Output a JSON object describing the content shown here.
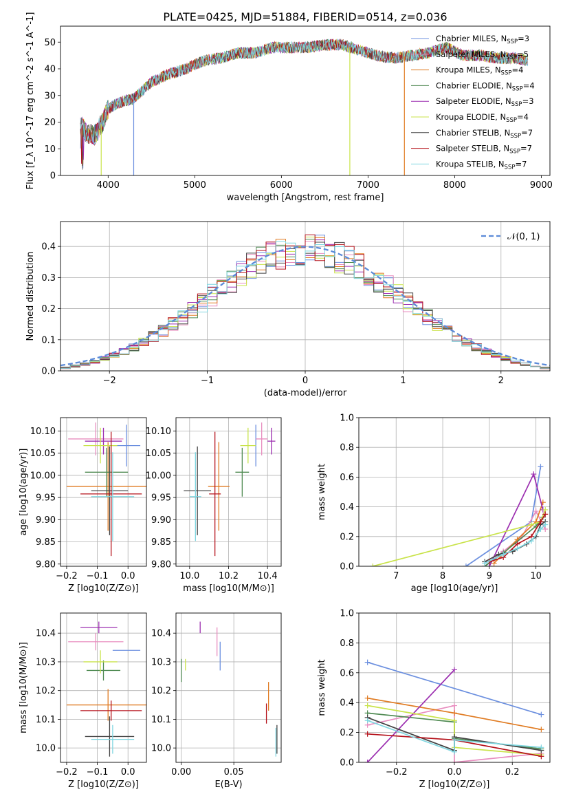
{
  "figure_title": "PLATE=0425, MJD=51884, FIBERID=0514, z=0.036",
  "series_legend": [
    {
      "name": "Chabrier MILES, N_SSP=3",
      "label": "Chabrier MILES, N",
      "sub": "SSP",
      "tail": "=3",
      "color": "#6b8fdf"
    },
    {
      "name": "Salpeter MILES, N_SSP=5",
      "label": "Salpeter MILES, N",
      "sub": "SSP",
      "tail": "=5",
      "color": "#e88dbf"
    },
    {
      "name": "Kroupa MILES, N_SSP=4",
      "label": "Kroupa MILES, N",
      "sub": "SSP",
      "tail": "=4",
      "color": "#e07b22"
    },
    {
      "name": "Chabrier ELODIE, N_SSP=4",
      "label": "Chabrier ELODIE, N",
      "sub": "SSP",
      "tail": "=4",
      "color": "#4f8a52"
    },
    {
      "name": "Salpeter ELODIE, N_SSP=3",
      "label": "Salpeter ELODIE, N",
      "sub": "SSP",
      "tail": "=3",
      "color": "#9c2fb0"
    },
    {
      "name": "Kroupa ELODIE, N_SSP=4",
      "label": "Kroupa ELODIE, N",
      "sub": "SSP",
      "tail": "=4",
      "color": "#c9e34a"
    },
    {
      "name": "Chabrier STELIB, N_SSP=7",
      "label": "Chabrier STELIB, N",
      "sub": "SSP",
      "tail": "=7",
      "color": "#444444"
    },
    {
      "name": "Salpeter STELIB, N_SSP=7",
      "label": "Salpeter STELIB, N",
      "sub": "SSP",
      "tail": "=7",
      "color": "#b5121b"
    },
    {
      "name": "Kroupa STELIB, N_SSP=7",
      "label": "Kroupa STELIB, N",
      "sub": "SSP",
      "tail": "=7",
      "color": "#7fd6e0"
    }
  ],
  "chart_data": [
    {
      "id": "spectrum",
      "type": "line",
      "title": "PLATE=0425, MJD=51884, FIBERID=0514, z=0.036",
      "xlabel": "wavelength [Angstrom, rest frame]",
      "ylabel": "Flux [f_λ 10^-17 erg cm^-2 s^-1 A^-1]",
      "xlim": [
        3450,
        9100
      ],
      "ylim": [
        0,
        56
      ],
      "xticks": [
        4000,
        5000,
        6000,
        7000,
        8000,
        9000
      ],
      "yticks": [
        0,
        10,
        20,
        30,
        40,
        50
      ],
      "legend": "upper right",
      "continuum": {
        "x": [
          3680,
          3750,
          3850,
          3950,
          4000,
          4100,
          4300,
          4500,
          4700,
          4900,
          5100,
          5300,
          5500,
          5700,
          5900,
          6100,
          6300,
          6500,
          6700,
          6900,
          7100,
          7300,
          7500,
          7700,
          7900,
          8100,
          8300,
          8500,
          8700,
          8850
        ],
        "y": [
          19,
          16,
          15,
          21,
          25,
          27,
          29,
          35,
          38,
          40,
          43,
          44,
          46,
          46,
          48,
          48,
          48,
          49,
          49,
          47,
          45,
          44,
          45,
          46,
          48,
          45,
          45,
          44,
          44,
          43
        ]
      },
      "drops": [
        {
          "series": "Chabrier MILES, N_SSP=3",
          "x": 4295,
          "to": 0
        },
        {
          "series": "Kroupa ELODIE, N_SSP=4",
          "x": 3920,
          "to": 0
        },
        {
          "series": "Kroupa ELODIE, N_SSP=4",
          "x": 6790,
          "to": 0
        },
        {
          "series": "Kroupa MILES, N_SSP=4",
          "x": 7420,
          "to": 0
        }
      ]
    },
    {
      "id": "residuals",
      "type": "line",
      "xlabel": "(data-model)/error",
      "ylabel": "Normed distribution",
      "xlim": [
        -2.5,
        2.5
      ],
      "ylim": [
        0,
        0.48
      ],
      "xticks": [
        -2,
        -1,
        0,
        1,
        2
      ],
      "yticks": [
        0.0,
        0.1,
        0.2,
        0.3,
        0.4
      ],
      "legend": "upper right",
      "series": [
        {
          "name": "N(0,1)",
          "label": "𝒩(0, 1)",
          "color": "#5b8ad8"
        }
      ]
    },
    {
      "id": "age_vs_Z",
      "type": "scatter",
      "xlabel": "Z [log10(Z/Z⊙)]",
      "ylabel": "age  [log10(age/yr)]",
      "xlim": [
        -0.22,
        0.06
      ],
      "ylim": [
        9.795,
        10.13
      ],
      "xticks": [
        -0.2,
        -0.1,
        0.0
      ],
      "yticks": [
        9.8,
        9.85,
        9.9,
        9.95,
        10.0,
        10.05,
        10.1
      ],
      "points": [
        {
          "series": "Chabrier MILES, N_SSP=3",
          "x": -0.005,
          "y": 10.067,
          "xerr": 0.045,
          "yerr": 0.047
        },
        {
          "series": "Salpeter MILES, N_SSP=5",
          "x": -0.105,
          "y": 10.082,
          "xerr": 0.09,
          "yerr": 0.037
        },
        {
          "series": "Kroupa MILES, N_SSP=4",
          "x": -0.065,
          "y": 9.975,
          "xerr": 0.135,
          "yerr": 0.1
        },
        {
          "series": "Chabrier ELODIE, N_SSP=4",
          "x": -0.07,
          "y": 10.007,
          "xerr": 0.07,
          "yerr": 0.055
        },
        {
          "series": "Salpeter ELODIE, N_SSP=3",
          "x": -0.08,
          "y": 10.077,
          "xerr": 0.06,
          "yerr": 0.03
        },
        {
          "series": "Kroupa ELODIE, N_SSP=4",
          "x": -0.09,
          "y": 10.067,
          "xerr": 0.055,
          "yerr": 0.04
        },
        {
          "series": "Chabrier STELIB, N_SSP=7",
          "x": -0.06,
          "y": 9.965,
          "xerr": 0.06,
          "yerr": 0.1
        },
        {
          "series": "Salpeter STELIB, N_SSP=7",
          "x": -0.055,
          "y": 9.958,
          "xerr": 0.1,
          "yerr": 0.14
        },
        {
          "series": "Kroupa STELIB, N_SSP=7",
          "x": -0.05,
          "y": 9.952,
          "xerr": 0.07,
          "yerr": 0.1
        }
      ]
    },
    {
      "id": "age_vs_mass",
      "type": "scatter",
      "xlabel": "mass [log10(M/M⊙)]",
      "ylim": [
        9.795,
        10.13
      ],
      "xlim": [
        9.93,
        10.47
      ],
      "xticks": [
        10.0,
        10.2,
        10.4
      ],
      "yticks": [
        9.8,
        9.85,
        9.9,
        9.95,
        10.0,
        10.05,
        10.1
      ],
      "points": [
        {
          "series": "Chabrier MILES, N_SSP=3",
          "x": 10.34,
          "y": 10.067,
          "xerr": 0.0,
          "yerr": 0.047
        },
        {
          "series": "Salpeter MILES, N_SSP=5",
          "x": 10.37,
          "y": 10.082,
          "xerr": 0.03,
          "yerr": 0.037
        },
        {
          "series": "Kroupa MILES, N_SSP=4",
          "x": 10.15,
          "y": 9.975,
          "xerr": 0.055,
          "yerr": 0.1
        },
        {
          "series": "Chabrier ELODIE, N_SSP=4",
          "x": 10.27,
          "y": 10.007,
          "xerr": 0.035,
          "yerr": 0.055
        },
        {
          "series": "Salpeter ELODIE, N_SSP=3",
          "x": 10.42,
          "y": 10.077,
          "xerr": 0.02,
          "yerr": 0.03
        },
        {
          "series": "Kroupa ELODIE, N_SSP=4",
          "x": 10.3,
          "y": 10.067,
          "xerr": 0.04,
          "yerr": 0.04
        },
        {
          "series": "Chabrier STELIB, N_SSP=7",
          "x": 10.04,
          "y": 9.965,
          "xerr": 0.07,
          "yerr": 0.1
        },
        {
          "series": "Salpeter STELIB, N_SSP=7",
          "x": 10.13,
          "y": 9.958,
          "xerr": 0.03,
          "yerr": 0.14
        },
        {
          "series": "Kroupa STELIB, N_SSP=7",
          "x": 10.03,
          "y": 9.952,
          "xerr": 0.03,
          "yerr": 0.1
        }
      ]
    },
    {
      "id": "mass_weight_vs_age",
      "type": "line",
      "xlabel": "age  [log10(age/yr)]",
      "ylabel": "mass weight",
      "xlim": [
        6.2,
        10.3
      ],
      "ylim": [
        0,
        1.0
      ],
      "xticks": [
        7,
        8,
        9,
        10
      ],
      "yticks": [
        0.0,
        0.2,
        0.4,
        0.6,
        0.8,
        1.0
      ],
      "series": [
        {
          "name": "Chabrier MILES, N_SSP=3",
          "x": [
            8.5,
            9.9,
            10.1
          ],
          "y": [
            0.0,
            0.3,
            0.67
          ]
        },
        {
          "name": "Salpeter MILES, N_SSP=5",
          "x": [
            8.9,
            9.3,
            9.7,
            10.0,
            10.2
          ],
          "y": [
            0.0,
            0.1,
            0.2,
            0.37,
            0.25
          ]
        },
        {
          "name": "Kroupa MILES, N_SSP=4",
          "x": [
            9.1,
            9.6,
            10.0,
            10.15
          ],
          "y": [
            0.02,
            0.18,
            0.3,
            0.43
          ]
        },
        {
          "name": "Chabrier ELODIE, N_SSP=4",
          "x": [
            8.9,
            9.3,
            10.0,
            10.15
          ],
          "y": [
            0.0,
            0.09,
            0.27,
            0.33
          ]
        },
        {
          "name": "Salpeter ELODIE, N_SSP=3",
          "x": [
            9.0,
            9.95,
            10.15
          ],
          "y": [
            0.0,
            0.62,
            0.38
          ]
        },
        {
          "name": "Kroupa ELODIE, N_SSP=4",
          "x": [
            6.5,
            9.9,
            10.1,
            10.2
          ],
          "y": [
            0.0,
            0.28,
            0.3,
            0.38
          ]
        },
        {
          "name": "Chabrier STELIB, N_SSP=7",
          "x": [
            8.9,
            9.2,
            9.5,
            9.8,
            10.0,
            10.1,
            10.2
          ],
          "y": [
            0.03,
            0.08,
            0.1,
            0.15,
            0.2,
            0.28,
            0.3
          ]
        },
        {
          "name": "Salpeter STELIB, N_SSP=7",
          "x": [
            9.0,
            9.3,
            9.6,
            9.9,
            10.1,
            10.2
          ],
          "y": [
            0.03,
            0.06,
            0.15,
            0.2,
            0.3,
            0.35
          ]
        },
        {
          "name": "Kroupa STELIB, N_SSP=7",
          "x": [
            8.9,
            9.3,
            9.6,
            9.9,
            10.1,
            10.2
          ],
          "y": [
            0.02,
            0.08,
            0.12,
            0.17,
            0.25,
            0.28
          ]
        }
      ]
    },
    {
      "id": "mass_vs_Z",
      "type": "scatter",
      "xlabel": "Z [log10(Z/Z⊙)]",
      "ylabel": "mass [log10(M/M⊙)]",
      "xlim": [
        -0.22,
        0.06
      ],
      "ylim": [
        9.95,
        10.47
      ],
      "xticks": [
        -0.2,
        -0.1,
        0.0
      ],
      "yticks": [
        10.0,
        10.1,
        10.2,
        10.3,
        10.4
      ],
      "points": [
        {
          "series": "Chabrier MILES, N_SSP=3",
          "x": -0.005,
          "y": 10.34,
          "xerr": 0.045,
          "yerr": 0.0
        },
        {
          "series": "Salpeter MILES, N_SSP=5",
          "x": -0.105,
          "y": 10.37,
          "xerr": 0.09,
          "yerr": 0.03
        },
        {
          "series": "Kroupa MILES, N_SSP=4",
          "x": -0.065,
          "y": 10.15,
          "xerr": 0.135,
          "yerr": 0.055
        },
        {
          "series": "Chabrier ELODIE, N_SSP=4",
          "x": -0.08,
          "y": 10.27,
          "xerr": 0.055,
          "yerr": 0.035
        },
        {
          "series": "Salpeter ELODIE, N_SSP=3",
          "x": -0.095,
          "y": 10.42,
          "xerr": 0.06,
          "yerr": 0.02
        },
        {
          "series": "Kroupa ELODIE, N_SSP=4",
          "x": -0.09,
          "y": 10.3,
          "xerr": 0.055,
          "yerr": 0.04
        },
        {
          "series": "Chabrier STELIB, N_SSP=7",
          "x": -0.06,
          "y": 10.04,
          "xerr": 0.08,
          "yerr": 0.07
        },
        {
          "series": "Salpeter STELIB, N_SSP=7",
          "x": -0.055,
          "y": 10.13,
          "xerr": 0.1,
          "yerr": 0.035
        },
        {
          "series": "Kroupa STELIB, N_SSP=7",
          "x": -0.05,
          "y": 10.03,
          "xerr": 0.07,
          "yerr": 0.05
        }
      ]
    },
    {
      "id": "mass_vs_EBV",
      "type": "scatter",
      "xlabel": "E(B-V)",
      "xlim": [
        -0.005,
        0.095
      ],
      "ylim": [
        9.95,
        10.47
      ],
      "xticks": [
        0.0,
        0.05
      ],
      "yticks": [
        10.0,
        10.1,
        10.2,
        10.3,
        10.4
      ],
      "points": [
        {
          "series": "Chabrier MILES, N_SSP=3",
          "x": 0.037,
          "y": 10.32,
          "xerr": 0.0,
          "yerr": 0.05
        },
        {
          "series": "Salpeter MILES, N_SSP=5",
          "x": 0.034,
          "y": 10.37,
          "xerr": 0.0,
          "yerr": 0.05
        },
        {
          "series": "Kroupa MILES, N_SSP=4",
          "x": 0.083,
          "y": 10.18,
          "xerr": 0.0,
          "yerr": 0.05
        },
        {
          "series": "Chabrier ELODIE, N_SSP=4",
          "x": 0.0,
          "y": 10.27,
          "xerr": 0.0,
          "yerr": 0.04
        },
        {
          "series": "Salpeter ELODIE, N_SSP=3",
          "x": 0.018,
          "y": 10.42,
          "xerr": 0.0,
          "yerr": 0.02
        },
        {
          "series": "Kroupa ELODIE, N_SSP=4",
          "x": 0.004,
          "y": 10.29,
          "xerr": 0.0,
          "yerr": 0.02
        },
        {
          "series": "Chabrier STELIB, N_SSP=7",
          "x": 0.091,
          "y": 10.03,
          "xerr": 0.0,
          "yerr": 0.05
        },
        {
          "series": "Salpeter STELIB, N_SSP=7",
          "x": 0.081,
          "y": 10.12,
          "xerr": 0.0,
          "yerr": 0.035
        },
        {
          "series": "Kroupa STELIB, N_SSP=7",
          "x": 0.09,
          "y": 10.02,
          "xerr": 0.0,
          "yerr": 0.05
        }
      ]
    },
    {
      "id": "mass_weight_vs_Z",
      "type": "line",
      "xlabel": "Z [log10(Z/Z⊙)]",
      "ylabel": "mass weight",
      "xlim": [
        -0.33,
        0.33
      ],
      "ylim": [
        0,
        1.0
      ],
      "xticks": [
        -0.2,
        0.0,
        0.2
      ],
      "yticks": [
        0.0,
        0.2,
        0.4,
        0.6,
        0.8,
        1.0
      ],
      "series": [
        {
          "name": "Chabrier MILES, N_SSP=3",
          "x": [
            -0.3,
            0.3
          ],
          "y": [
            0.67,
            0.32
          ]
        },
        {
          "name": "Salpeter MILES, N_SSP=5",
          "x": [
            -0.3,
            0.0,
            0.0,
            0.3
          ],
          "y": [
            0.25,
            0.38,
            0.0,
            0.06
          ]
        },
        {
          "name": "Kroupa MILES, N_SSP=4",
          "x": [
            -0.3,
            0.0,
            0.3
          ],
          "y": [
            0.43,
            0.33,
            0.22
          ]
        },
        {
          "name": "Chabrier ELODIE, N_SSP=4",
          "x": [
            -0.3,
            0.0,
            0.0,
            0.3
          ],
          "y": [
            0.33,
            0.27,
            0.16,
            0.09
          ]
        },
        {
          "name": "Salpeter ELODIE, N_SSP=3",
          "x": [
            -0.3,
            0.0
          ],
          "y": [
            0.0,
            0.62
          ]
        },
        {
          "name": "Kroupa ELODIE, N_SSP=4",
          "x": [
            -0.3,
            0.0,
            0.0,
            0.3
          ],
          "y": [
            0.38,
            0.28,
            0.1,
            0.05
          ]
        },
        {
          "name": "Chabrier STELIB, N_SSP=7",
          "x": [
            -0.3,
            0.0,
            0.0,
            0.3
          ],
          "y": [
            0.3,
            0.08,
            0.17,
            0.08
          ]
        },
        {
          "name": "Salpeter STELIB, N_SSP=7",
          "x": [
            -0.3,
            0.0,
            0.3
          ],
          "y": [
            0.19,
            0.15,
            0.04
          ]
        },
        {
          "name": "Kroupa STELIB, N_SSP=7",
          "x": [
            -0.3,
            0.0,
            0.0,
            0.3
          ],
          "y": [
            0.28,
            0.07,
            0.15,
            0.1
          ]
        }
      ]
    }
  ]
}
